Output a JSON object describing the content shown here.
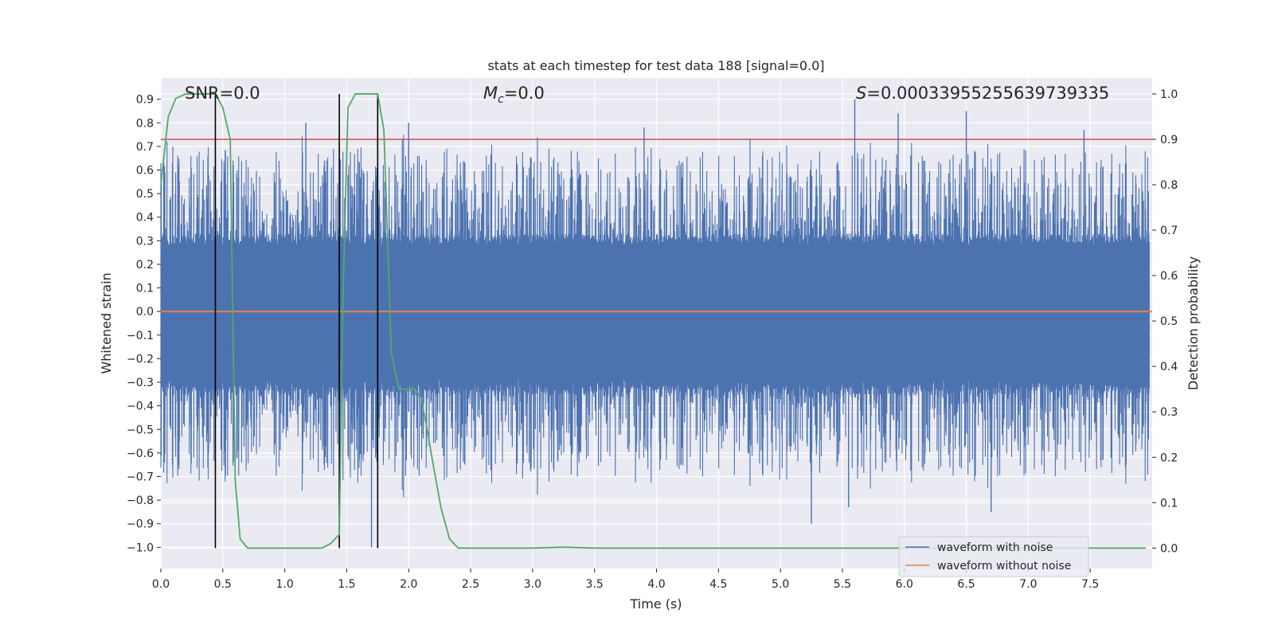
{
  "chart_data": {
    "type": "line",
    "title": "stats at each timestep for test data 188 [signal=0.0]",
    "xlabel": "Time (s)",
    "ylabel_left": "Whitened strain",
    "ylabel_right": "Detection probability",
    "xlim": [
      0.0,
      8.0
    ],
    "ylim_left": [
      -1.09,
      0.99
    ],
    "ylim_right": [
      -0.045,
      1.035
    ],
    "xticks": [
      0.0,
      0.5,
      1.0,
      1.5,
      2.0,
      2.5,
      3.0,
      3.5,
      4.0,
      4.5,
      5.0,
      5.5,
      6.0,
      6.5,
      7.0,
      7.5
    ],
    "xtick_labels": [
      "0.0",
      "0.5",
      "1.0",
      "1.5",
      "2.0",
      "2.5",
      "3.0",
      "3.5",
      "4.0",
      "4.5",
      "5.0",
      "5.5",
      "6.0",
      "6.5",
      "7.0",
      "7.5"
    ],
    "yticks_left": [
      0.9,
      0.8,
      0.7,
      0.6,
      0.5,
      0.4,
      0.3,
      0.2,
      0.1,
      0.0,
      -0.1,
      -0.2,
      -0.3,
      -0.4,
      -0.5,
      -0.6,
      -0.7,
      -0.8,
      -0.9,
      -1.0
    ],
    "ytick_labels_left": [
      "0.9",
      "0.8",
      "0.7",
      "0.6",
      "0.5",
      "0.4",
      "0.3",
      "0.2",
      "0.1",
      "0.0",
      "−0.1",
      "−0.2",
      "−0.3",
      "−0.4",
      "−0.5",
      "−0.6",
      "−0.7",
      "−0.8",
      "−0.9",
      "−1.0"
    ],
    "yticks_right": [
      1.0,
      0.9,
      0.8,
      0.7,
      0.6,
      0.5,
      0.4,
      0.3,
      0.2,
      0.1,
      0.0
    ],
    "ytick_labels_right": [
      "1.0",
      "0.9",
      "0.8",
      "0.7",
      "0.6",
      "0.5",
      "0.4",
      "0.3",
      "0.2",
      "0.1",
      "0.0"
    ],
    "annotations": {
      "snr": "SNR=0.0",
      "mc_symbol": "M",
      "mc_sub": "c",
      "mc_value": "=0.0",
      "s_symbol": "S",
      "s_value": "=0.00033955255639739335"
    },
    "threshold": {
      "axis": "right",
      "value": 0.9,
      "color": "#c44e52"
    },
    "vertical_markers": [
      0.44,
      1.44,
      1.75
    ],
    "noise_series": {
      "name": "waveform with noise",
      "color": "#4c72b0",
      "core_amplitude": 0.33,
      "typical_peak": 0.5,
      "max_peak": 0.9,
      "min_peak": -1.0,
      "notable_peaks": [
        {
          "t": 1.17,
          "v": 0.8
        },
        {
          "t": 2.0,
          "v": 0.8
        },
        {
          "t": 3.9,
          "v": 0.78
        },
        {
          "t": 5.6,
          "v": 0.9
        },
        {
          "t": 5.95,
          "v": 0.84
        },
        {
          "t": 6.5,
          "v": 0.85
        },
        {
          "t": 7.45,
          "v": 0.77
        },
        {
          "t": 1.7,
          "v": -1.0
        },
        {
          "t": 5.25,
          "v": -0.9
        },
        {
          "t": 6.7,
          "v": -0.85
        },
        {
          "t": 5.55,
          "v": -0.83
        }
      ]
    },
    "clean_series": {
      "name": "waveform without noise",
      "color": "#dd8452",
      "value": 0.0
    },
    "probability_series": {
      "name": "detection probability",
      "axis": "right",
      "color": "#55a868",
      "x": [
        0.0,
        0.06,
        0.12,
        0.2,
        0.3,
        0.44,
        0.5,
        0.56,
        0.6,
        0.64,
        0.7,
        1.0,
        1.3,
        1.37,
        1.44,
        1.47,
        1.51,
        1.57,
        1.63,
        1.7,
        1.75,
        1.8,
        1.86,
        1.92,
        1.98,
        2.05,
        2.1,
        2.15,
        2.2,
        2.26,
        2.33,
        2.4,
        3.0,
        3.25,
        3.5,
        4.0,
        5.0,
        6.0,
        7.0,
        7.95
      ],
      "y": [
        0.8,
        0.95,
        0.99,
        1.0,
        1.0,
        1.0,
        0.97,
        0.9,
        0.15,
        0.02,
        0.0,
        0.0,
        0.0,
        0.01,
        0.03,
        0.55,
        0.97,
        1.0,
        1.0,
        1.0,
        1.0,
        0.92,
        0.43,
        0.35,
        0.35,
        0.35,
        0.33,
        0.26,
        0.18,
        0.09,
        0.02,
        0.0,
        0.0,
        0.002,
        0.0,
        0.0,
        0.0,
        0.0,
        0.0,
        0.0
      ]
    },
    "legend": {
      "position": "lower-right",
      "entries": [
        {
          "label": "waveform with noise",
          "color": "#4c72b0"
        },
        {
          "label": "waveform without noise",
          "color": "#dd8452"
        }
      ]
    },
    "style": {
      "axes_bg": "#eaeaf2",
      "grid": "#ffffff",
      "marker_color": "#000000"
    }
  }
}
